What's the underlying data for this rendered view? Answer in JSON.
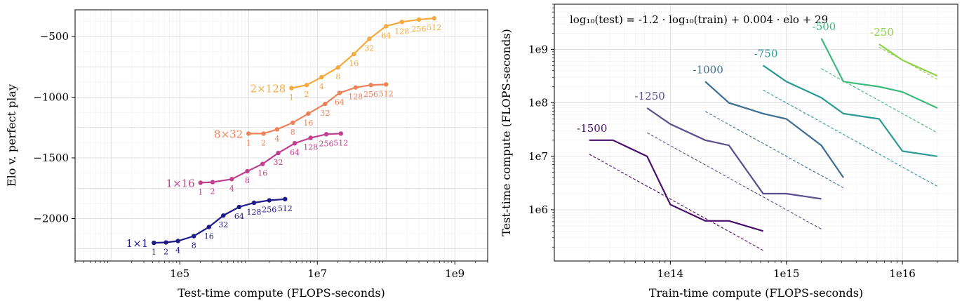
{
  "chart_data": [
    {
      "type": "line",
      "xlabel": "Test-time compute (FLOPS-seconds)",
      "ylabel": "Elo v. perfect play",
      "xscale": "log",
      "xlim": [
        3000,
        3000000000
      ],
      "ylim": [
        -2350,
        -280
      ],
      "grid": true,
      "xticks": [
        {
          "value": 100000,
          "label": "1e5"
        },
        {
          "value": 10000000,
          "label": "1e7"
        },
        {
          "value": 1000000000,
          "label": "1e9"
        }
      ],
      "yticks": [
        {
          "value": -500,
          "label": "−500"
        },
        {
          "value": -1000,
          "label": "−1000"
        },
        {
          "value": -1500,
          "label": "−1500"
        },
        {
          "value": -2000,
          "label": "−2000"
        }
      ],
      "series": [
        {
          "name": "1×1",
          "color": "#1f1a8a",
          "points": [
            {
              "x": 42000,
              "y": -2200,
              "label": "1"
            },
            {
              "x": 63000,
              "y": -2197,
              "label": "2"
            },
            {
              "x": 94000,
              "y": -2185,
              "label": "4"
            },
            {
              "x": 160000,
              "y": -2145,
              "label": "8"
            },
            {
              "x": 265000,
              "y": -2070,
              "label": "16"
            },
            {
              "x": 430000,
              "y": -1975,
              "label": "32"
            },
            {
              "x": 730000,
              "y": -1905,
              "label": "64"
            },
            {
              "x": 1200000,
              "y": -1870,
              "label": "128"
            },
            {
              "x": 2000000,
              "y": -1850,
              "label": "256"
            },
            {
              "x": 3400000,
              "y": -1840,
              "label": "512"
            }
          ]
        },
        {
          "name": "1×16",
          "color": "#c13f8f",
          "points": [
            {
              "x": 200000,
              "y": -1705,
              "label": "1"
            },
            {
              "x": 300000,
              "y": -1700,
              "label": "2"
            },
            {
              "x": 570000,
              "y": -1675,
              "label": "4"
            },
            {
              "x": 960000,
              "y": -1610,
              "label": "8"
            },
            {
              "x": 1600000,
              "y": -1550,
              "label": "16"
            },
            {
              "x": 2700000,
              "y": -1460,
              "label": "32"
            },
            {
              "x": 4700000,
              "y": -1380,
              "label": "64"
            },
            {
              "x": 8000000,
              "y": -1335,
              "label": "128"
            },
            {
              "x": 13500000,
              "y": -1305,
              "label": "256"
            },
            {
              "x": 22000000,
              "y": -1300,
              "label": "512"
            }
          ]
        },
        {
          "name": "8×32",
          "color": "#ef8158",
          "points": [
            {
              "x": 1000000,
              "y": -1300,
              "label": "1"
            },
            {
              "x": 1650000,
              "y": -1300,
              "label": "2"
            },
            {
              "x": 2600000,
              "y": -1265,
              "label": "4"
            },
            {
              "x": 4400000,
              "y": -1210,
              "label": "8"
            },
            {
              "x": 7400000,
              "y": -1135,
              "label": "16"
            },
            {
              "x": 13000000,
              "y": -1055,
              "label": "32"
            },
            {
              "x": 21000000,
              "y": -965,
              "label": "64"
            },
            {
              "x": 36000000,
              "y": -920,
              "label": "128"
            },
            {
              "x": 60000000,
              "y": -900,
              "label": "256"
            },
            {
              "x": 100000000,
              "y": -895,
              "label": "512"
            }
          ]
        },
        {
          "name": "2×128",
          "color": "#f6a93e",
          "points": [
            {
              "x": 4200000,
              "y": -925,
              "label": "1"
            },
            {
              "x": 7000000,
              "y": -900,
              "label": "2"
            },
            {
              "x": 11500000,
              "y": -835,
              "label": "4"
            },
            {
              "x": 20000000,
              "y": -755,
              "label": "8"
            },
            {
              "x": 34000000,
              "y": -645,
              "label": "16"
            },
            {
              "x": 57000000,
              "y": -520,
              "label": "32"
            },
            {
              "x": 100000000,
              "y": -415,
              "label": "64"
            },
            {
              "x": 170000000,
              "y": -380,
              "label": "128"
            },
            {
              "x": 300000000,
              "y": -360,
              "label": "256"
            },
            {
              "x": 500000000,
              "y": -350,
              "label": "512"
            }
          ]
        }
      ]
    },
    {
      "type": "line",
      "xlabel": "Train-time compute (FLOPS-seconds)",
      "ylabel": "Test-time compute (FLOPS-seconds)",
      "xscale": "log",
      "yscale": "log",
      "xlim": [
        10000000000000,
        30000000000000000
      ],
      "ylim": [
        110000,
        7000000000
      ],
      "grid": true,
      "annotation": "log₁₀(test) = -1.2 · log₁₀(train) + 0.004 · elo + 29",
      "xticks": [
        {
          "value": 100000000000000,
          "label": "1e14"
        },
        {
          "value": 1000000000000000,
          "label": "1e15"
        },
        {
          "value": 10000000000000000,
          "label": "1e16"
        }
      ],
      "yticks": [
        {
          "value": 1000000,
          "label": "1e6"
        },
        {
          "value": 10000000,
          "label": "1e7"
        },
        {
          "value": 100000000,
          "label": "1e8"
        },
        {
          "value": 1000000000,
          "label": "1e9"
        }
      ],
      "series": [
        {
          "name": "-1500",
          "color": "#4b0c6b",
          "fit_elo": -1500,
          "points": [
            [
              20000000000000,
              20000000
            ],
            [
              32000000000000,
              20000000
            ],
            [
              63000000000000,
              10000000
            ],
            [
              100000000000000,
              1250000
            ],
            [
              200000000000000,
              620000
            ],
            [
              320000000000000,
              620000
            ],
            [
              630000000000000,
              400000
            ]
          ]
        },
        {
          "name": "-1250",
          "color": "#5c4d8e",
          "fit_elo": -1250,
          "points": [
            [
              63000000000000,
              80000000
            ],
            [
              100000000000000,
              40000000
            ],
            [
              200000000000000,
              20000000
            ],
            [
              320000000000000,
              16000000
            ],
            [
              630000000000000,
              2000000
            ],
            [
              1000000000000000,
              2000000
            ],
            [
              2000000000000000,
              1600000
            ]
          ]
        },
        {
          "name": "-1000",
          "color": "#3d6e91",
          "fit_elo": -1000,
          "points": [
            [
              200000000000000,
              250000000
            ],
            [
              320000000000000,
              100000000
            ],
            [
              630000000000000,
              63000000
            ],
            [
              1000000000000000,
              50000000
            ],
            [
              2000000000000000,
              16000000
            ],
            [
              3100000000000000,
              4000000
            ]
          ]
        },
        {
          "name": "-750",
          "color": "#2b9b92",
          "fit_elo": -750,
          "points": [
            [
              630000000000000,
              500000000
            ],
            [
              1000000000000000,
              250000000
            ],
            [
              2000000000000000,
              125000000
            ],
            [
              3100000000000000,
              63000000
            ],
            [
              6300000000000000,
              50000000
            ],
            [
              10000000000000000,
              12500000
            ],
            [
              20000000000000000,
              10000000
            ]
          ]
        },
        {
          "name": "-500",
          "color": "#3ab97a",
          "fit_elo": -500,
          "points": [
            [
              2000000000000000,
              1600000000
            ],
            [
              3100000000000000,
              250000000
            ],
            [
              6300000000000000,
              200000000
            ],
            [
              10000000000000000,
              160000000
            ],
            [
              20000000000000000,
              80000000
            ]
          ]
        },
        {
          "name": "-250",
          "color": "#8fd24a",
          "fit_elo": -250,
          "points": [
            [
              6300000000000000,
              1250000000
            ],
            [
              10000000000000000,
              630000000
            ],
            [
              20000000000000000,
              320000000
            ]
          ]
        }
      ]
    }
  ]
}
